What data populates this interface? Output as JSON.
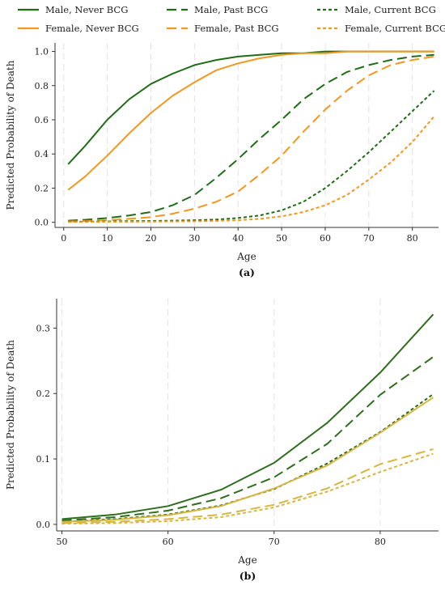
{
  "legend": [
    {
      "label": "Male, Never BCG",
      "color": "#1f6e16",
      "dash": "solid"
    },
    {
      "label": "Male, Past BCG",
      "color": "#1f6e16",
      "dash": "long"
    },
    {
      "label": "Male, Current BCG",
      "color": "#1f6e16",
      "dash": "short"
    },
    {
      "label": "Female, Never BCG",
      "color": "#f5961e",
      "dash": "solid"
    },
    {
      "label": "Female, Past BCG",
      "color": "#f5961e",
      "dash": "long"
    },
    {
      "label": "Female, Current BCG",
      "color": "#f5961e",
      "dash": "short"
    }
  ],
  "chart_data": [
    {
      "type": "line",
      "caption": "(a)",
      "xlabel": "Age",
      "ylabel": "Predicted Probability of Death",
      "xlim": [
        -2,
        86
      ],
      "ylim": [
        -0.03,
        1.05
      ],
      "xticks": [
        0,
        10,
        20,
        30,
        40,
        50,
        60,
        70,
        80
      ],
      "yticks": [
        "0.0",
        "0.2",
        "0.4",
        "0.6",
        "0.8",
        "1.0"
      ],
      "grid": "vertical dashed",
      "x": [
        1,
        5,
        10,
        15,
        20,
        25,
        30,
        35,
        40,
        45,
        50,
        55,
        60,
        65,
        70,
        75,
        80,
        85
      ],
      "series": [
        {
          "name": "Male, Never BCG",
          "color": "#1f6e16",
          "dash": "solid",
          "values": [
            0.34,
            0.45,
            0.6,
            0.72,
            0.81,
            0.87,
            0.92,
            0.95,
            0.97,
            0.98,
            0.99,
            0.99,
            1.0,
            1.0,
            1.0,
            1.0,
            1.0,
            1.0
          ]
        },
        {
          "name": "Female, Never BCG",
          "color": "#f5961e",
          "dash": "solid",
          "values": [
            0.19,
            0.27,
            0.39,
            0.52,
            0.64,
            0.74,
            0.82,
            0.89,
            0.93,
            0.96,
            0.98,
            0.99,
            0.99,
            1.0,
            1.0,
            1.0,
            1.0,
            1.0
          ]
        },
        {
          "name": "Male, Past BCG",
          "color": "#1f6e16",
          "dash": "long",
          "values": [
            0.01,
            0.015,
            0.025,
            0.04,
            0.06,
            0.1,
            0.16,
            0.26,
            0.37,
            0.49,
            0.6,
            0.72,
            0.81,
            0.88,
            0.92,
            0.95,
            0.97,
            0.98
          ]
        },
        {
          "name": "Female, Past BCG",
          "color": "#f5961e",
          "dash": "long",
          "values": [
            0.005,
            0.008,
            0.012,
            0.02,
            0.03,
            0.05,
            0.08,
            0.12,
            0.18,
            0.28,
            0.39,
            0.53,
            0.66,
            0.77,
            0.86,
            0.92,
            0.95,
            0.97
          ]
        },
        {
          "name": "Male, Current BCG",
          "color": "#1f6e16",
          "dash": "short",
          "values": [
            0.003,
            0.004,
            0.005,
            0.007,
            0.008,
            0.01,
            0.012,
            0.016,
            0.025,
            0.04,
            0.07,
            0.12,
            0.2,
            0.3,
            0.41,
            0.53,
            0.65,
            0.77
          ]
        },
        {
          "name": "Female, Current BCG",
          "color": "#f5961e",
          "dash": "short",
          "values": [
            0.002,
            0.002,
            0.003,
            0.003,
            0.004,
            0.005,
            0.006,
            0.008,
            0.012,
            0.02,
            0.035,
            0.06,
            0.1,
            0.16,
            0.25,
            0.35,
            0.47,
            0.62
          ]
        }
      ]
    },
    {
      "type": "line",
      "caption": "(b)",
      "xlabel": "Age",
      "ylabel": "Predicted Probability of Death",
      "xlim": [
        49.5,
        85.5
      ],
      "ylim": [
        -0.01,
        0.345
      ],
      "xticks": [
        50,
        60,
        70,
        80
      ],
      "yticks": [
        "0.0",
        "0.1",
        "0.2",
        "0.3"
      ],
      "grid": "vertical dashed",
      "x": [
        50,
        55,
        60,
        65,
        70,
        75,
        80,
        85
      ],
      "series": [
        {
          "color": "#2e6e1c",
          "dash": "solid",
          "values": [
            0.008,
            0.015,
            0.028,
            0.053,
            0.094,
            0.155,
            0.232,
            0.321
          ]
        },
        {
          "color": "#2e6e1c",
          "dash": "long",
          "values": [
            0.006,
            0.011,
            0.021,
            0.04,
            0.072,
            0.123,
            0.198,
            0.256
          ]
        },
        {
          "color": "#2e6e1c",
          "dash": "short",
          "values": [
            0.004,
            0.008,
            0.015,
            0.029,
            0.054,
            0.093,
            0.141,
            0.199
          ]
        },
        {
          "color": "#d8b640",
          "dash": "solid",
          "values": [
            0.004,
            0.007,
            0.014,
            0.028,
            0.055,
            0.09,
            0.14,
            0.194
          ]
        },
        {
          "color": "#d8b640",
          "dash": "long",
          "values": [
            0.002,
            0.004,
            0.008,
            0.015,
            0.03,
            0.055,
            0.092,
            0.115
          ]
        },
        {
          "color": "#d8b640",
          "dash": "short",
          "values": [
            0.001,
            0.002,
            0.005,
            0.011,
            0.026,
            0.05,
            0.08,
            0.108
          ]
        }
      ]
    }
  ]
}
